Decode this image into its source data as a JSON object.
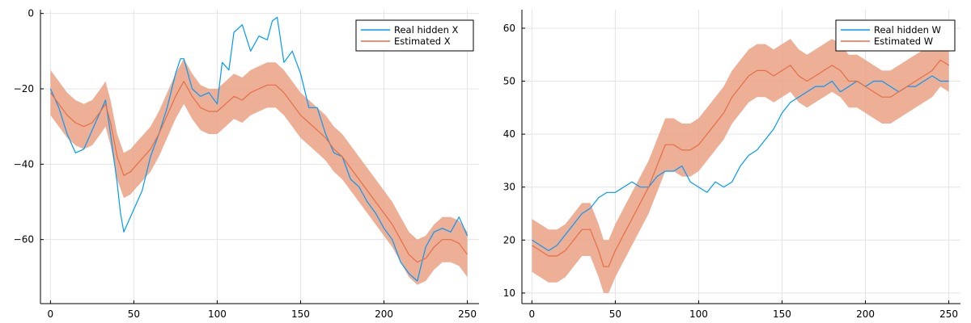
{
  "colors": {
    "real": "#009AFA",
    "estimated": "#E26F46",
    "band": "#EBA185",
    "grid": "#E4E4E4",
    "axis": "#000000"
  },
  "chart_data": [
    {
      "type": "line",
      "title": "",
      "xlabel": "",
      "ylabel": "",
      "xlim": [
        -6,
        257
      ],
      "ylim": [
        -77,
        1
      ],
      "xticks": [
        0,
        50,
        100,
        150,
        200,
        250
      ],
      "yticks": [
        0,
        -20,
        -40,
        -60
      ],
      "grid": true,
      "legend_position": "top-right",
      "series": [
        {
          "name": "Real hidden X",
          "color": "#009AFA",
          "points": [
            [
              0,
              -20
            ],
            [
              5,
              -25
            ],
            [
              10,
              -32
            ],
            [
              15,
              -37
            ],
            [
              20,
              -36
            ],
            [
              25,
              -31
            ],
            [
              30,
              -26
            ],
            [
              33,
              -23
            ],
            [
              36,
              -32
            ],
            [
              40,
              -45
            ],
            [
              42,
              -53
            ],
            [
              44,
              -58
            ],
            [
              47,
              -55
            ],
            [
              50,
              -52
            ],
            [
              55,
              -47
            ],
            [
              60,
              -38
            ],
            [
              65,
              -32
            ],
            [
              70,
              -25
            ],
            [
              75,
              -16
            ],
            [
              78,
              -12
            ],
            [
              80,
              -12
            ],
            [
              85,
              -20
            ],
            [
              90,
              -22
            ],
            [
              95,
              -21
            ],
            [
              100,
              -24
            ],
            [
              103,
              -13
            ],
            [
              107,
              -15
            ],
            [
              110,
              -5
            ],
            [
              115,
              -3
            ],
            [
              120,
              -10
            ],
            [
              125,
              -6
            ],
            [
              130,
              -7
            ],
            [
              133,
              -2
            ],
            [
              136,
              -1
            ],
            [
              140,
              -13
            ],
            [
              145,
              -10
            ],
            [
              150,
              -16
            ],
            [
              155,
              -25
            ],
            [
              160,
              -25
            ],
            [
              165,
              -32
            ],
            [
              170,
              -37
            ],
            [
              175,
              -38
            ],
            [
              180,
              -44
            ],
            [
              185,
              -46
            ],
            [
              190,
              -50
            ],
            [
              195,
              -53
            ],
            [
              200,
              -57
            ],
            [
              205,
              -60
            ],
            [
              210,
              -66
            ],
            [
              215,
              -69
            ],
            [
              220,
              -71
            ],
            [
              225,
              -62
            ],
            [
              230,
              -58
            ],
            [
              235,
              -57
            ],
            [
              240,
              -58
            ],
            [
              245,
              -54
            ],
            [
              250,
              -59
            ]
          ]
        },
        {
          "name": "Estimated X",
          "color": "#E26F46",
          "points": [
            [
              0,
              -21
            ],
            [
              5,
              -24
            ],
            [
              10,
              -27
            ],
            [
              15,
              -29
            ],
            [
              20,
              -30
            ],
            [
              25,
              -29
            ],
            [
              30,
              -26
            ],
            [
              33,
              -24
            ],
            [
              36,
              -29
            ],
            [
              40,
              -38
            ],
            [
              44,
              -43
            ],
            [
              48,
              -42
            ],
            [
              52,
              -40
            ],
            [
              56,
              -38
            ],
            [
              60,
              -36
            ],
            [
              65,
              -32
            ],
            [
              70,
              -27
            ],
            [
              75,
              -22
            ],
            [
              80,
              -18
            ],
            [
              85,
              -22
            ],
            [
              90,
              -25
            ],
            [
              95,
              -26
            ],
            [
              100,
              -26
            ],
            [
              105,
              -24
            ],
            [
              110,
              -22
            ],
            [
              115,
              -23
            ],
            [
              120,
              -21
            ],
            [
              125,
              -20
            ],
            [
              130,
              -19
            ],
            [
              135,
              -19
            ],
            [
              140,
              -21
            ],
            [
              145,
              -24
            ],
            [
              150,
              -27
            ],
            [
              155,
              -29
            ],
            [
              160,
              -31
            ],
            [
              165,
              -33
            ],
            [
              170,
              -36
            ],
            [
              175,
              -38
            ],
            [
              180,
              -41
            ],
            [
              185,
              -44
            ],
            [
              190,
              -47
            ],
            [
              195,
              -50
            ],
            [
              200,
              -53
            ],
            [
              205,
              -56
            ],
            [
              210,
              -60
            ],
            [
              215,
              -64
            ],
            [
              220,
              -66
            ],
            [
              225,
              -65
            ],
            [
              230,
              -62
            ],
            [
              235,
              -60
            ],
            [
              240,
              -60
            ],
            [
              245,
              -61
            ],
            [
              250,
              -64
            ]
          ],
          "band_halfwidth": 6
        }
      ]
    },
    {
      "type": "line",
      "title": "",
      "xlabel": "",
      "ylabel": "",
      "xlim": [
        -6,
        257
      ],
      "ylim": [
        8,
        63.5
      ],
      "xticks": [
        0,
        50,
        100,
        150,
        200,
        250
      ],
      "yticks": [
        10,
        20,
        30,
        40,
        50,
        60
      ],
      "grid": true,
      "legend_position": "top-right",
      "series": [
        {
          "name": "Real hidden W",
          "color": "#009AFA",
          "points": [
            [
              0,
              20
            ],
            [
              5,
              19
            ],
            [
              10,
              18
            ],
            [
              15,
              19
            ],
            [
              20,
              21
            ],
            [
              25,
              23
            ],
            [
              30,
              25
            ],
            [
              35,
              26
            ],
            [
              40,
              28
            ],
            [
              45,
              29
            ],
            [
              50,
              29
            ],
            [
              55,
              30
            ],
            [
              60,
              31
            ],
            [
              65,
              30
            ],
            [
              70,
              30
            ],
            [
              75,
              32
            ],
            [
              80,
              33
            ],
            [
              85,
              33
            ],
            [
              90,
              34
            ],
            [
              95,
              31
            ],
            [
              100,
              30
            ],
            [
              105,
              29
            ],
            [
              110,
              31
            ],
            [
              115,
              30
            ],
            [
              120,
              31
            ],
            [
              125,
              34
            ],
            [
              130,
              36
            ],
            [
              135,
              37
            ],
            [
              140,
              39
            ],
            [
              145,
              41
            ],
            [
              150,
              44
            ],
            [
              155,
              46
            ],
            [
              160,
              47
            ],
            [
              165,
              48
            ],
            [
              170,
              49
            ],
            [
              175,
              49
            ],
            [
              180,
              50
            ],
            [
              185,
              48
            ],
            [
              190,
              49
            ],
            [
              195,
              50
            ],
            [
              200,
              49
            ],
            [
              205,
              50
            ],
            [
              210,
              50
            ],
            [
              215,
              49
            ],
            [
              220,
              48
            ],
            [
              225,
              49
            ],
            [
              230,
              49
            ],
            [
              235,
              50
            ],
            [
              240,
              51
            ],
            [
              245,
              50
            ],
            [
              250,
              50
            ]
          ]
        },
        {
          "name": "Estimated W",
          "color": "#E26F46",
          "points": [
            [
              0,
              19
            ],
            [
              5,
              18
            ],
            [
              10,
              17
            ],
            [
              15,
              17
            ],
            [
              20,
              18
            ],
            [
              25,
              20
            ],
            [
              30,
              22
            ],
            [
              35,
              22
            ],
            [
              40,
              18
            ],
            [
              43,
              15
            ],
            [
              46,
              15
            ],
            [
              50,
              18
            ],
            [
              55,
              21
            ],
            [
              60,
              24
            ],
            [
              65,
              27
            ],
            [
              70,
              30
            ],
            [
              75,
              34
            ],
            [
              80,
              38
            ],
            [
              85,
              38
            ],
            [
              90,
              37
            ],
            [
              95,
              37
            ],
            [
              100,
              38
            ],
            [
              105,
              40
            ],
            [
              110,
              42
            ],
            [
              115,
              44
            ],
            [
              120,
              47
            ],
            [
              125,
              49
            ],
            [
              130,
              51
            ],
            [
              135,
              52
            ],
            [
              140,
              52
            ],
            [
              145,
              51
            ],
            [
              150,
              52
            ],
            [
              155,
              53
            ],
            [
              160,
              51
            ],
            [
              165,
              50
            ],
            [
              170,
              51
            ],
            [
              175,
              52
            ],
            [
              180,
              53
            ],
            [
              185,
              52
            ],
            [
              190,
              50
            ],
            [
              195,
              50
            ],
            [
              200,
              49
            ],
            [
              205,
              48
            ],
            [
              210,
              47
            ],
            [
              215,
              47
            ],
            [
              220,
              48
            ],
            [
              225,
              49
            ],
            [
              230,
              50
            ],
            [
              235,
              51
            ],
            [
              240,
              52
            ],
            [
              245,
              54
            ],
            [
              250,
              53
            ]
          ],
          "band_halfwidth": 5
        }
      ]
    }
  ]
}
